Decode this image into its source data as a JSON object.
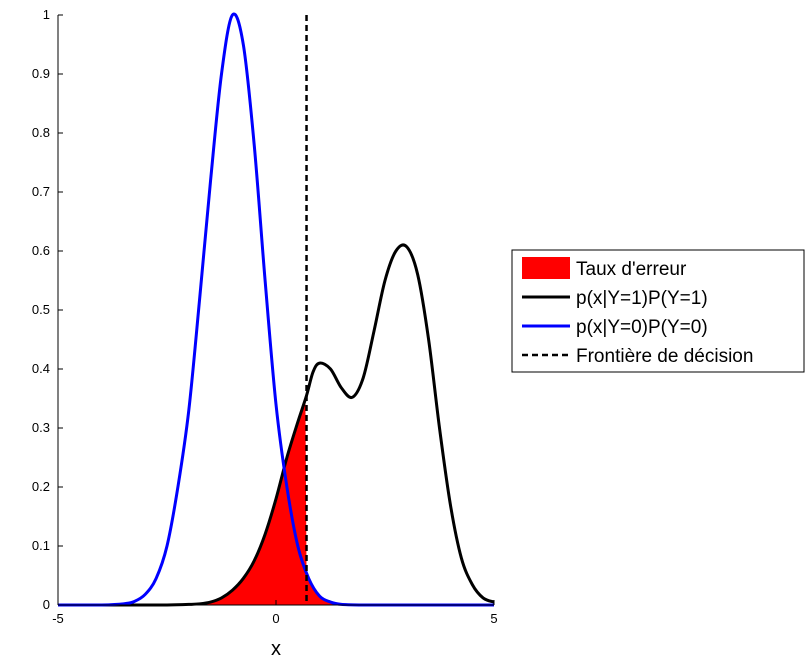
{
  "chart_data": {
    "type": "line",
    "title": "",
    "xlabel": "x",
    "ylabel": "",
    "xlim": [
      -5,
      5
    ],
    "ylim": [
      0,
      1
    ],
    "x_ticks": [
      -5,
      0,
      5
    ],
    "x_tick_labels": [
      "-5",
      "0",
      "5"
    ],
    "y_ticks": [
      0,
      0.1,
      0.2,
      0.3,
      0.4,
      0.5,
      0.6,
      0.7,
      0.8,
      0.9,
      1
    ],
    "y_tick_labels": [
      "0",
      "0.1",
      "0.2",
      "0.3",
      "0.4",
      "0.5",
      "0.6",
      "0.7",
      "0.8",
      "0.9",
      "1"
    ],
    "grid": false,
    "legend_position": "right",
    "decision_boundary_x": 0.7,
    "series": [
      {
        "name": "p(x|Y=1)P(Y=1)",
        "color": "#000000",
        "x": [
          -5,
          -4.5,
          -4,
          -3.5,
          -3,
          -2.5,
          -2,
          -1.75,
          -1.5,
          -1.25,
          -1,
          -0.75,
          -0.5,
          -0.25,
          0,
          0.25,
          0.5,
          0.7,
          0.85,
          1,
          1.25,
          1.5,
          1.75,
          2,
          2.25,
          2.5,
          2.75,
          3,
          3.25,
          3.5,
          3.75,
          4,
          4.25,
          4.5,
          4.75,
          5
        ],
        "y": [
          0,
          0,
          0,
          0,
          0,
          0,
          0.001,
          0.002,
          0.005,
          0.012,
          0.025,
          0.045,
          0.075,
          0.12,
          0.18,
          0.25,
          0.31,
          0.355,
          0.395,
          0.41,
          0.4,
          0.368,
          0.352,
          0.385,
          0.465,
          0.55,
          0.6,
          0.607,
          0.56,
          0.45,
          0.3,
          0.17,
          0.08,
          0.035,
          0.012,
          0.005
        ]
      },
      {
        "name": "p(x|Y=0)P(Y=0)",
        "color": "#0000ff",
        "x": [
          -5,
          -4.5,
          -4,
          -3.5,
          -3.25,
          -3,
          -2.75,
          -2.5,
          -2.25,
          -2,
          -1.75,
          -1.5,
          -1.25,
          -1,
          -0.75,
          -0.5,
          -0.25,
          0,
          0.25,
          0.5,
          0.75,
          1,
          1.25,
          1.5,
          2,
          2.5,
          3,
          4,
          5
        ],
        "y": [
          0,
          0,
          0,
          0.002,
          0.006,
          0.018,
          0.045,
          0.1,
          0.2,
          0.33,
          0.52,
          0.72,
          0.9,
          1.0,
          0.95,
          0.78,
          0.55,
          0.34,
          0.2,
          0.1,
          0.045,
          0.015,
          0.005,
          0.001,
          0,
          0,
          0,
          0,
          0
        ]
      }
    ],
    "legend": [
      {
        "label": "Taux d'erreur",
        "kind": "patch",
        "color": "#ff0000"
      },
      {
        "label": "p(x|Y=1)P(Y=1)",
        "kind": "line",
        "color": "#000000"
      },
      {
        "label": "p(x|Y=0)P(Y=0)",
        "kind": "line",
        "color": "#0000ff"
      },
      {
        "label": "Frontière de décision",
        "kind": "dashed",
        "color": "#000000"
      }
    ]
  }
}
